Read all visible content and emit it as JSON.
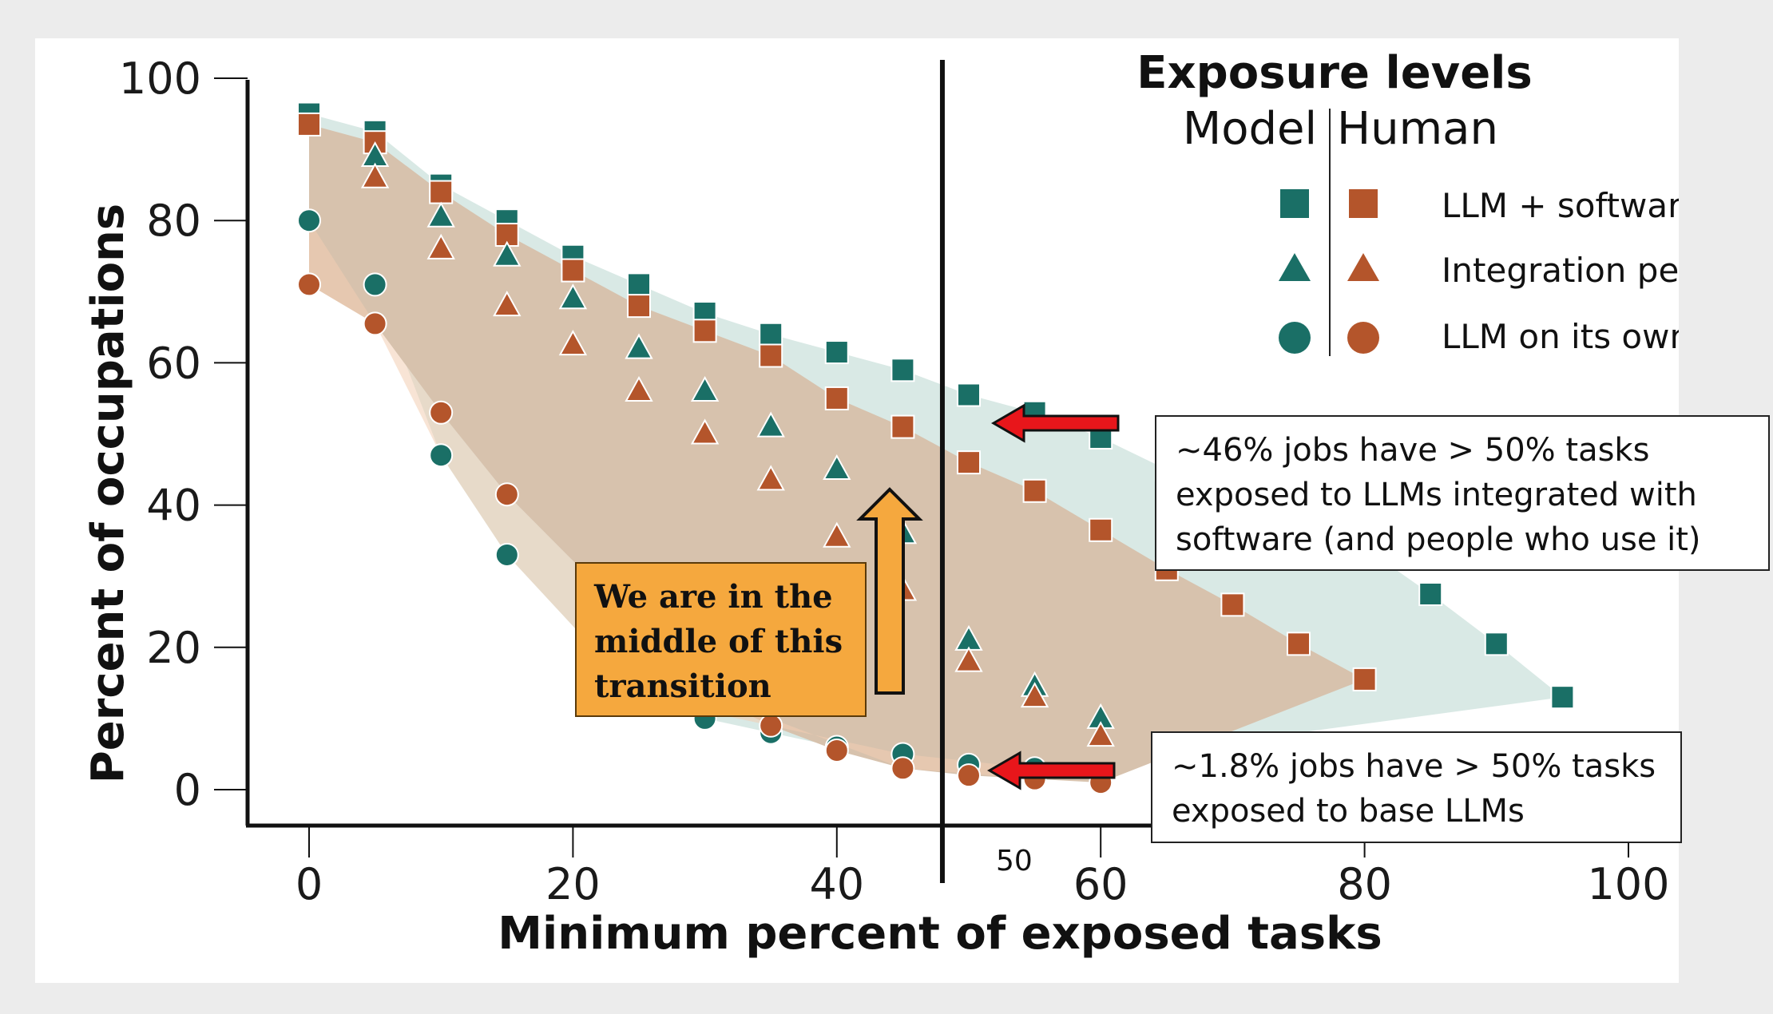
{
  "chart_data": {
    "type": "scatter",
    "title": "",
    "xlabel": "Minimum percent of exposed tasks",
    "ylabel": "Percent of occupations",
    "xlim": [
      -5,
      100
    ],
    "ylim": [
      -5,
      100
    ],
    "x_ticks": [
      "0",
      "20",
      "40",
      "60",
      "80",
      "100"
    ],
    "y_ticks": [
      "0",
      "20",
      "40",
      "60",
      "80",
      "100"
    ],
    "extra_x_label": "50",
    "vertical_line_x": 48,
    "grid": false,
    "legend": {
      "title": "Exposure levels",
      "column_model": "Model",
      "column_human": "Human",
      "rows": [
        "LLM + software",
        "Integration period",
        "LLM on its own"
      ],
      "placement": "top-right"
    },
    "colors": {
      "model": "#1a6f66",
      "human": "#b4552b",
      "model_band": "#d9e9e5",
      "human_band": "#d7c2ad",
      "human_low_band": "#f2cdb3"
    },
    "series": [
      {
        "name": "LLM + software",
        "source": "Model",
        "marker": "square",
        "color": "#1a6f66",
        "x": [
          0,
          5,
          10,
          15,
          20,
          25,
          30,
          35,
          40,
          45,
          50,
          55,
          60,
          65,
          70,
          75,
          80,
          85,
          90,
          95
        ],
        "y": [
          95,
          92.5,
          85,
          80,
          75,
          71,
          67,
          64,
          61.5,
          59,
          55.5,
          53,
          49.5,
          45,
          41.5,
          38,
          34,
          27.5,
          20.5,
          13
        ]
      },
      {
        "name": "LLM + software",
        "source": "Human",
        "marker": "square",
        "color": "#b4552b",
        "x": [
          0,
          5,
          10,
          15,
          20,
          25,
          30,
          35,
          40,
          45,
          50,
          55,
          60,
          65,
          70,
          75,
          80
        ],
        "y": [
          93.5,
          91,
          84,
          78,
          73,
          68,
          64.5,
          61,
          55,
          51,
          46,
          42,
          36.5,
          31,
          26,
          20.5,
          15.5
        ]
      },
      {
        "name": "Integration period",
        "source": "Model",
        "marker": "triangle",
        "color": "#1a6f66",
        "x": [
          5,
          10,
          15,
          20,
          25,
          30,
          35,
          40,
          45,
          50,
          55,
          60
        ],
        "y": [
          89,
          80.5,
          75,
          69,
          62,
          56,
          51,
          45,
          36,
          21,
          14.5,
          10
        ]
      },
      {
        "name": "Integration period",
        "source": "Human",
        "marker": "triangle",
        "color": "#b4552b",
        "x": [
          5,
          10,
          15,
          20,
          25,
          30,
          35,
          40,
          45,
          50,
          55,
          60
        ],
        "y": [
          86,
          76,
          68,
          62.5,
          56,
          50,
          43.5,
          35.5,
          28,
          18,
          13,
          7.5
        ]
      },
      {
        "name": "LLM on its own",
        "source": "Model",
        "marker": "circle",
        "color": "#1a6f66",
        "x": [
          0,
          5,
          10,
          15,
          25,
          30,
          35,
          40,
          45,
          50,
          55
        ],
        "y": [
          80,
          71,
          47,
          33,
          13,
          10,
          8,
          6,
          5,
          3.5,
          3
        ]
      },
      {
        "name": "LLM on its own",
        "source": "Human",
        "marker": "circle",
        "color": "#b4552b",
        "x": [
          0,
          5,
          10,
          15,
          30,
          35,
          40,
          45,
          50,
          55,
          60
        ],
        "y": [
          71,
          65.5,
          53,
          41.5,
          13.5,
          9,
          5.5,
          3,
          2,
          1.5,
          1
        ]
      }
    ],
    "annotations": [
      {
        "id": "software",
        "text_lines": [
          "~46% jobs have > 50% tasks",
          "exposed to LLMs integrated with",
          "software (and people who use it)"
        ]
      },
      {
        "id": "base",
        "text_lines": [
          "~1.8% jobs have > 50% tasks",
          "exposed to base LLMs"
        ]
      },
      {
        "id": "transition",
        "text_lines": [
          "We are in the",
          "middle of this",
          "transition"
        ]
      }
    ]
  }
}
